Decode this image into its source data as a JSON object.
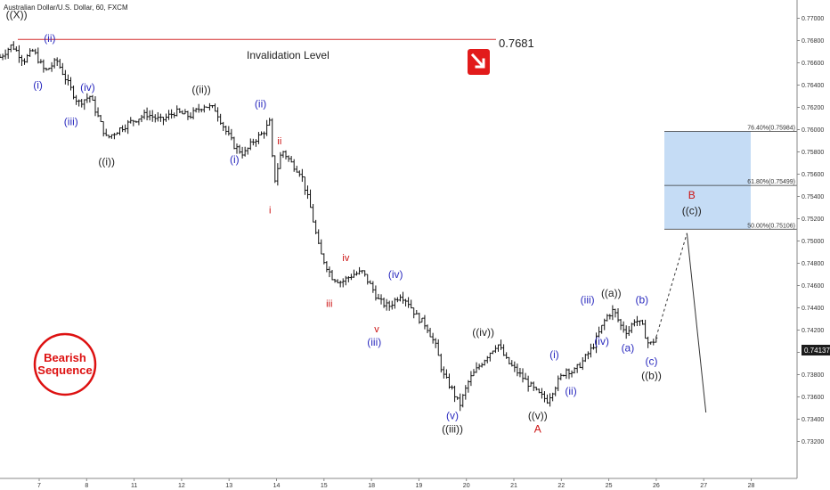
{
  "title": "Australian Dollar/U.S. Dollar, 60, FXCM",
  "invalidation": {
    "label": "Invalidation Level",
    "value": "0.7681",
    "price": 0.7681
  },
  "current_price": "0.74137",
  "badge": {
    "line1": "Bearish",
    "line2": "Sequence"
  },
  "colors": {
    "black_label": "#222222",
    "blue_label": "#2b2bbf",
    "red_label": "#cc1111",
    "fib_box": "#c5dcf5",
    "invalidation_line": "#d32f2f",
    "arrow_box": "#e21b1b"
  },
  "fib_levels": [
    {
      "text": "76.40%(0.75984)",
      "price": 0.75984
    },
    {
      "text": "61.80%(0.75499)",
      "price": 0.75499
    },
    {
      "text": "50.00%(0.75106)",
      "price": 0.75106
    }
  ],
  "chart_data": {
    "type": "candlestick",
    "title": "Australian Dollar/U.S. Dollar, 60, FXCM",
    "x_ticks": [
      "7",
      "8",
      "11",
      "12",
      "13",
      "14",
      "15",
      "18",
      "19",
      "20",
      "21",
      "22",
      "25",
      "26",
      "27",
      "28"
    ],
    "y_ticks": [
      "0.77000",
      "0.76800",
      "0.76600",
      "0.76400",
      "0.76200",
      "0.76000",
      "0.75800",
      "0.75600",
      "0.75400",
      "0.75200",
      "0.75000",
      "0.74800",
      "0.74600",
      "0.74400",
      "0.74200",
      "0.74000",
      "0.73800",
      "0.73600",
      "0.73400",
      "0.73200"
    ],
    "ylim": [
      0.731,
      0.7712
    ],
    "grid": false,
    "path_points": [
      [
        0.0,
        0.7665
      ],
      [
        0.25,
        0.7676
      ],
      [
        0.5,
        0.7662
      ],
      [
        0.7,
        0.7671
      ],
      [
        0.95,
        0.7652
      ],
      [
        1.2,
        0.7662
      ],
      [
        1.45,
        0.764
      ],
      [
        1.65,
        0.7624
      ],
      [
        1.9,
        0.763
      ],
      [
        2.1,
        0.7608
      ],
      [
        2.25,
        0.7592
      ],
      [
        2.5,
        0.76
      ],
      [
        2.8,
        0.7608
      ],
      [
        3.1,
        0.7614
      ],
      [
        3.4,
        0.7608
      ],
      [
        3.7,
        0.7616
      ],
      [
        4.0,
        0.7612
      ],
      [
        4.3,
        0.7622
      ],
      [
        4.55,
        0.7618
      ],
      [
        4.75,
        0.76
      ],
      [
        4.95,
        0.7585
      ],
      [
        5.15,
        0.7578
      ],
      [
        5.35,
        0.759
      ],
      [
        5.55,
        0.7597
      ],
      [
        5.7,
        0.7607
      ],
      [
        5.78,
        0.7551
      ],
      [
        5.95,
        0.7582
      ],
      [
        6.15,
        0.757
      ],
      [
        6.35,
        0.7561
      ],
      [
        6.55,
        0.753
      ],
      [
        6.75,
        0.749
      ],
      [
        7.0,
        0.7468
      ],
      [
        7.2,
        0.7463
      ],
      [
        7.45,
        0.747
      ],
      [
        7.65,
        0.7472
      ],
      [
        7.85,
        0.7458
      ],
      [
        8.0,
        0.7446
      ],
      [
        8.2,
        0.7441
      ],
      [
        8.45,
        0.7452
      ],
      [
        8.6,
        0.7446
      ],
      [
        8.8,
        0.7432
      ],
      [
        9.0,
        0.7424
      ],
      [
        9.2,
        0.7405
      ],
      [
        9.35,
        0.738
      ],
      [
        9.55,
        0.7366
      ],
      [
        9.7,
        0.7352
      ],
      [
        9.9,
        0.7375
      ],
      [
        10.1,
        0.7387
      ],
      [
        10.3,
        0.7398
      ],
      [
        10.5,
        0.7408
      ],
      [
        10.7,
        0.7392
      ],
      [
        10.95,
        0.7381
      ],
      [
        11.15,
        0.7372
      ],
      [
        11.35,
        0.7363
      ],
      [
        11.55,
        0.7357
      ],
      [
        11.75,
        0.7372
      ],
      [
        11.95,
        0.7385
      ],
      [
        12.1,
        0.7382
      ],
      [
        12.3,
        0.7392
      ],
      [
        12.5,
        0.7404
      ],
      [
        12.65,
        0.7418
      ],
      [
        12.8,
        0.7432
      ],
      [
        12.95,
        0.7438
      ],
      [
        13.1,
        0.7424
      ],
      [
        13.25,
        0.7418
      ],
      [
        13.4,
        0.743
      ],
      [
        13.55,
        0.7424
      ],
      [
        13.7,
        0.7406
      ],
      [
        13.85,
        0.7413
      ]
    ],
    "projection": [
      [
        13.85,
        0.74137
      ],
      [
        14.5,
        0.7507
      ],
      [
        14.9,
        0.7346
      ]
    ],
    "wave_labels": [
      {
        "text": "((X))",
        "x": 0.35,
        "price": 0.77,
        "color": "black"
      },
      {
        "text": "(ii)",
        "x": 1.05,
        "price": 0.7679,
        "color": "blue"
      },
      {
        "text": "(i)",
        "x": 0.8,
        "price": 0.7637,
        "color": "blue"
      },
      {
        "text": "(iv)",
        "x": 1.85,
        "price": 0.7635,
        "color": "blue"
      },
      {
        "text": "(iii)",
        "x": 1.5,
        "price": 0.7604,
        "color": "blue"
      },
      {
        "text": "((i))",
        "x": 2.25,
        "price": 0.7568,
        "color": "black"
      },
      {
        "text": "((ii))",
        "x": 4.25,
        "price": 0.7633,
        "color": "black"
      },
      {
        "text": "(ii)",
        "x": 5.5,
        "price": 0.762,
        "color": "blue"
      },
      {
        "text": "(i)",
        "x": 4.95,
        "price": 0.757,
        "color": "blue"
      },
      {
        "text": "ii",
        "x": 5.9,
        "price": 0.7587,
        "color": "red"
      },
      {
        "text": "i",
        "x": 5.7,
        "price": 0.7525,
        "color": "red"
      },
      {
        "text": "iv",
        "x": 7.3,
        "price": 0.7482,
        "color": "red"
      },
      {
        "text": "iii",
        "x": 6.95,
        "price": 0.7441,
        "color": "red"
      },
      {
        "text": "(iv)",
        "x": 8.35,
        "price": 0.7467,
        "color": "blue"
      },
      {
        "text": "v",
        "x": 7.95,
        "price": 0.7418,
        "color": "red"
      },
      {
        "text": "(iii)",
        "x": 7.9,
        "price": 0.7406,
        "color": "blue"
      },
      {
        "text": "((iv))",
        "x": 10.2,
        "price": 0.7415,
        "color": "black"
      },
      {
        "text": "(v)",
        "x": 9.55,
        "price": 0.734,
        "color": "blue"
      },
      {
        "text": "((iii))",
        "x": 9.55,
        "price": 0.7328,
        "color": "black"
      },
      {
        "text": "(i)",
        "x": 11.7,
        "price": 0.7395,
        "color": "blue"
      },
      {
        "text": "(ii)",
        "x": 12.05,
        "price": 0.7362,
        "color": "blue"
      },
      {
        "text": "((v))",
        "x": 11.35,
        "price": 0.734,
        "color": "black"
      },
      {
        "text": "A",
        "x": 11.35,
        "price": 0.7328,
        "color": "red"
      },
      {
        "text": "(iii)",
        "x": 12.4,
        "price": 0.7444,
        "color": "blue"
      },
      {
        "text": "((a))",
        "x": 12.9,
        "price": 0.745,
        "color": "black"
      },
      {
        "text": "(b)",
        "x": 13.55,
        "price": 0.7444,
        "color": "blue"
      },
      {
        "text": "(iv)",
        "x": 12.7,
        "price": 0.7407,
        "color": "blue"
      },
      {
        "text": "(a)",
        "x": 13.25,
        "price": 0.7401,
        "color": "blue"
      },
      {
        "text": "(c)",
        "x": 13.75,
        "price": 0.7389,
        "color": "blue"
      },
      {
        "text": "((b))",
        "x": 13.75,
        "price": 0.7376,
        "color": "black"
      },
      {
        "text": "B",
        "x": 14.6,
        "price": 0.7538,
        "color": "red"
      },
      {
        "text": "((c))",
        "x": 14.6,
        "price": 0.7524,
        "color": "black"
      }
    ]
  }
}
